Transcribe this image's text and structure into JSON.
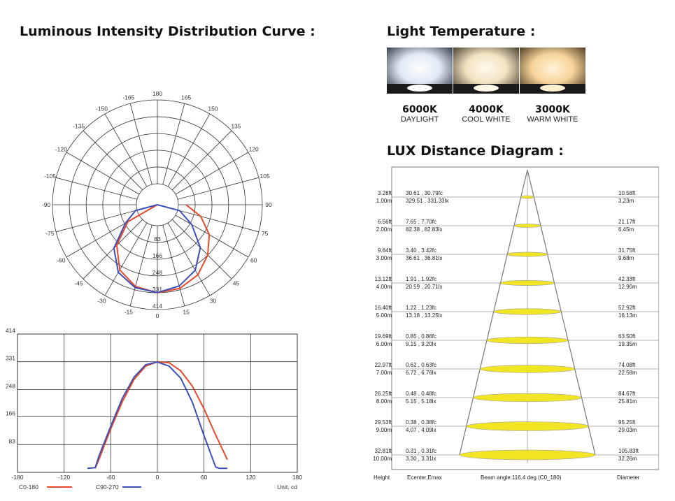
{
  "headings": {
    "curve": "Luminous Intensity Distribution Curve :",
    "temperature": "Light Temperature :",
    "lux": "LUX Distance Diagram :"
  },
  "temperatures": [
    {
      "kelvin": "6000K",
      "name": "DAYLIGHT",
      "color": "#dfe8f4"
    },
    {
      "kelvin": "4000K",
      "name": "COOL WHITE",
      "color": "#f2e2c0"
    },
    {
      "kelvin": "3000K",
      "name": "WARM WHITE",
      "color": "#f7d49a"
    }
  ],
  "chart_data": [
    {
      "type": "polar",
      "angle_labels": [
        "180",
        "165",
        "150",
        "135",
        "120",
        "105",
        "90",
        "75",
        "60",
        "45",
        "30",
        "15",
        "0",
        "-15",
        "-30",
        "-45",
        "-60",
        "-75",
        "-90",
        "-105",
        "-120",
        "-135",
        "-150",
        "-165"
      ],
      "radial_labels": [
        "83",
        "166",
        "248",
        "331",
        "414"
      ],
      "rmax": 414,
      "series": [
        {
          "name": "C0-180",
          "color": "#e8492b",
          "angles": [
            -90,
            -75,
            -60,
            -45,
            -30,
            -15,
            0,
            15,
            30,
            45,
            60,
            75,
            90
          ],
          "values": [
            0,
            0,
            65,
            180,
            268,
            314,
            331,
            324,
            296,
            248,
            192,
            118,
            38
          ]
        },
        {
          "name": "C90-270",
          "color": "#3b4fb8",
          "angles": [
            -90,
            -75,
            -60,
            -45,
            -30,
            -15,
            0,
            15,
            30,
            45,
            60,
            75,
            90
          ],
          "values": [
            0,
            8,
            78,
            200,
            282,
            320,
            330,
            312,
            270,
            196,
            92,
            10,
            0
          ]
        }
      ]
    },
    {
      "type": "line",
      "xlim": [
        -180,
        180
      ],
      "ylim": [
        0,
        414
      ],
      "xticks": [
        -180,
        -120,
        -60,
        0,
        60,
        120,
        180
      ],
      "yticks": [
        83,
        166,
        248,
        331,
        414
      ],
      "unit": "Unit: cd",
      "series": [
        {
          "name": "C0-180",
          "color": "#e8492b",
          "x": [
            -80,
            -75,
            -60,
            -45,
            -30,
            -15,
            0,
            15,
            30,
            45,
            60,
            75,
            90
          ],
          "y": [
            12,
            40,
            130,
            212,
            278,
            318,
            331,
            328,
            304,
            258,
            190,
            112,
            38
          ]
        },
        {
          "name": "C90-270",
          "color": "#3b4fb8",
          "x": [
            -90,
            -80,
            -75,
            -60,
            -45,
            -30,
            -15,
            0,
            15,
            30,
            45,
            60,
            75,
            80,
            90
          ],
          "y": [
            12,
            14,
            50,
            138,
            222,
            285,
            322,
            330,
            318,
            282,
            210,
            110,
            16,
            12,
            12
          ]
        }
      ]
    },
    {
      "type": "table",
      "title": "LUX Distance Diagram :",
      "rows": [
        {
          "ft": "3.28ft",
          "m": "1.00m",
          "fc": "30.61 , 30.79fc",
          "lx": "329.51 , 331.33lx",
          "dft": "10.58ft",
          "dm": "3.23m"
        },
        {
          "ft": "6.56ft",
          "m": "2.00m",
          "fc": "7.65 , 7.70fc",
          "lx": "82.38 , 82.83lx",
          "dft": "21.17ft",
          "dm": "6.45m"
        },
        {
          "ft": "9.84ft",
          "m": "3.00m",
          "fc": "3.40 , 3.42fc",
          "lx": "36.61 , 36.81lx",
          "dft": "31.75ft",
          "dm": "9.68m"
        },
        {
          "ft": "13.12ft",
          "m": "4.00m",
          "fc": "1.91 , 1.92fc",
          "lx": "20.59 , 20.71lx",
          "dft": "42.33ft",
          "dm": "12.90m"
        },
        {
          "ft": "16.40ft",
          "m": "5.00m",
          "fc": "1.22 , 1.23fc",
          "lx": "13.18 , 13.25lx",
          "dft": "52.92ft",
          "dm": "16.13m"
        },
        {
          "ft": "19.69ft",
          "m": "6.00m",
          "fc": "0.85 , 0.86fc",
          "lx": "9.15 , 9.20lx",
          "dft": "63.50ft",
          "dm": "19.35m"
        },
        {
          "ft": "22.97ft",
          "m": "7.00m",
          "fc": "0.62 , 0.63fc",
          "lx": "6.72 , 6.76lx",
          "dft": "74.08ft",
          "dm": "22.58m"
        },
        {
          "ft": "26.25ft",
          "m": "8.00m",
          "fc": "0.48 , 0.48fc",
          "lx": "5.15 , 5.18lx",
          "dft": "84.67ft",
          "dm": "25.81m"
        },
        {
          "ft": "29.53ft",
          "m": "9.00m",
          "fc": "0.38 , 0.38fc",
          "lx": "4.07 , 4.09lx",
          "dft": "95.25ft",
          "dm": "29.03m"
        },
        {
          "ft": "32.81ft",
          "m": "10.00m",
          "fc": "0.31 , 0.31fc",
          "lx": "3.30 , 3.31lx",
          "dft": "105.83ft",
          "dm": "32.26m"
        }
      ],
      "footer": {
        "height": "Height",
        "ecenter": "Ecenter,Emax",
        "beam": "Beam angle:116.4 deg (C0_180)",
        "diameter": "Diameter"
      },
      "ellipse_color": "#f2e524"
    }
  ]
}
